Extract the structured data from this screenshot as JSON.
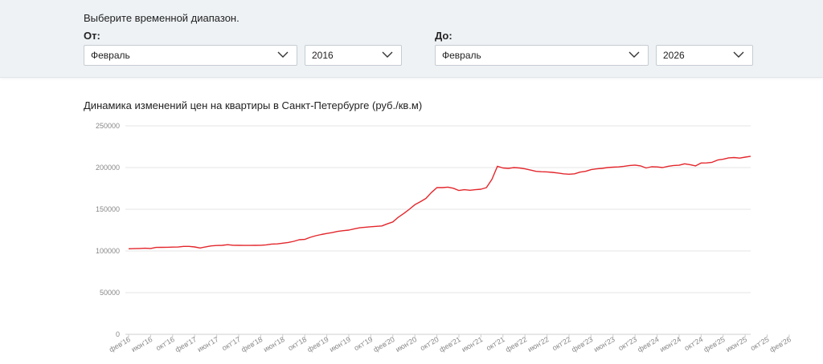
{
  "filters": {
    "prompt": "Выберите временной диапазон.",
    "from": {
      "label": "От:",
      "month": "Февраль",
      "year": "2016"
    },
    "to": {
      "label": "До:",
      "month": "Февраль",
      "year": "2026"
    }
  },
  "colors": {
    "line": "#e3262b",
    "grid": "#e6e6e6",
    "panel": "#eef2f5"
  },
  "chart_data": {
    "type": "line",
    "title": "Динамика изменений цен на квартиры в Санкт-Петербурге (руб./кв.м)",
    "xlabel": "",
    "ylabel": "",
    "ylim": [
      0,
      250000
    ],
    "yticks": [
      "0",
      "50000",
      "100000",
      "150000",
      "200000",
      "250000"
    ],
    "x_tick_labels": [
      "фев'16",
      "июн'16",
      "окт'16",
      "фев'17",
      "июн'17",
      "окт'17",
      "фев'18",
      "июн'18",
      "окт'18",
      "фев'19",
      "июн'19",
      "окт'19",
      "фев'20",
      "июн'20",
      "окт'20",
      "фев'21",
      "июн'21",
      "окт'21",
      "фев'22",
      "июн'22",
      "окт'22",
      "фев'23",
      "июн'23",
      "окт'23",
      "фев'24",
      "июн'24",
      "окт'24",
      "фев'25",
      "июн'25",
      "окт'25",
      "фев'26"
    ],
    "grid": true,
    "legend": "none",
    "series": [
      {
        "values": [
          102600,
          102800,
          103000,
          103300,
          103000,
          104200,
          104300,
          104400,
          104600,
          104700,
          105500,
          105500,
          104800,
          103600,
          104900,
          106100,
          106500,
          106700,
          107500,
          106800,
          106700,
          106600,
          106600,
          106700,
          106800,
          107300,
          108300,
          108500,
          109300,
          110200,
          111500,
          113500,
          113800,
          116300,
          118300,
          119700,
          121000,
          122000,
          123500,
          124300,
          125000,
          126500,
          127800,
          128500,
          129000,
          129500,
          130000,
          132500,
          134800,
          140500,
          145000,
          150000,
          155500,
          159000,
          163000,
          170000,
          176000,
          176000,
          176500,
          175200,
          172500,
          173500,
          172800,
          173500,
          174000,
          176000,
          186000,
          201500,
          199500,
          199000,
          200000,
          199500,
          198500,
          197000,
          195500,
          195000,
          194800,
          194200,
          193500,
          192500,
          192000,
          192500,
          194500,
          195500,
          197500,
          198500,
          199000,
          200000,
          200500,
          200800,
          201500,
          202500,
          203000,
          202000,
          199500,
          201000,
          200800,
          200000,
          201500,
          202500,
          202800,
          204500,
          203500,
          202000,
          205500,
          205600,
          206300,
          209000,
          210000,
          211600,
          212000,
          211300,
          212500,
          213600
        ]
      }
    ]
  }
}
